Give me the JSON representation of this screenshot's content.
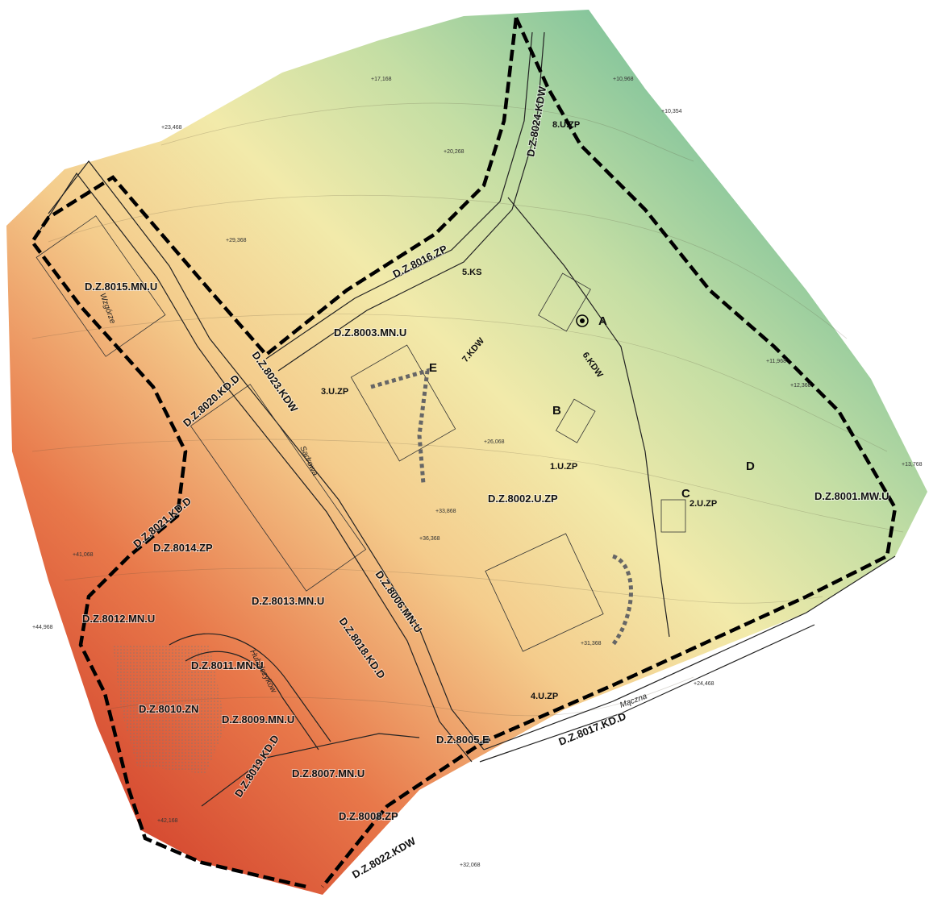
{
  "zones": [
    "D.Z.8015.MN.U",
    "D.Z.8024.KDW",
    "8.U.ZP",
    "D.Z.8016.ZP",
    "5.KS",
    "D.Z.8003.MN.U",
    "7.KDW",
    "3.U.ZP",
    "D.Z.8023.KDW",
    "D.Z.8020.KD.D",
    "6.KDW",
    "1.U.ZP",
    "D.Z.8002.U.ZP",
    "2.U.ZP",
    "D.Z.8001.MW.U",
    "D.Z.8021.KD.D",
    "D.Z.8014.ZP",
    "D.Z.8013.MN.U",
    "D.Z.8012.MN.U",
    "D.Z.8006.MN.U",
    "D.Z.8018.KD.D",
    "D.Z.8011.MN.U",
    "D.Z.8010.ZN",
    "D.Z.8009.MN.U",
    "D.Z.8005.E",
    "D.Z.8019.KD.D",
    "D.Z.8007.MN.U",
    "D.Z.8008.ZP",
    "D.Z.8022.KDW",
    "D.Z.8017.KD.D",
    "4.U.ZP"
  ],
  "letters": [
    "A",
    "B",
    "C",
    "D",
    "E"
  ],
  "streets": [
    "Wzgórze",
    "Sadrowa",
    "Hubalczyków",
    "Mączna"
  ],
  "spot_heights": [
    "+10,354",
    "+10,968",
    "+11,968",
    "+12,368",
    "+13,768",
    "+17,168",
    "+20,268",
    "+23,468",
    "+26,068",
    "+29,368",
    "+33,868",
    "+36,368",
    "+41,068",
    "+44,968",
    "+42,168",
    "+31,368",
    "+24,468",
    "+32,068"
  ]
}
